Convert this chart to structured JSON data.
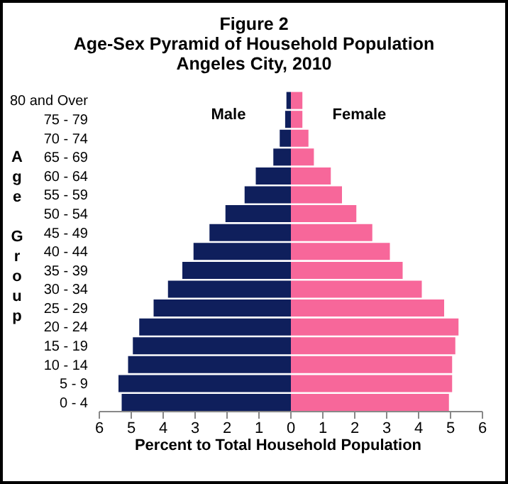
{
  "chart_data": {
    "type": "bar",
    "orientation": "horizontal",
    "stacked": true,
    "title": "Figure 2",
    "subtitle": "Age-Sex Pyramid of Household Population\nAngeles City, 2010",
    "xlabel": "Percent to Total Household Population",
    "ylabel": "Age Group",
    "categories": [
      "80 and Over",
      "75 - 79",
      "70 - 74",
      "65 - 69",
      "60 - 64",
      "55 - 59",
      "50 - 54",
      "45 - 49",
      "40 - 44",
      "35 - 39",
      "30 - 34",
      "25 - 29",
      "20 - 24",
      "15 - 19",
      "10 - 14",
      "5 - 9",
      "0 - 4"
    ],
    "series": [
      {
        "name": "Male",
        "color": "#0f1f5c",
        "values": [
          -0.14,
          -0.18,
          -0.35,
          -0.55,
          -1.1,
          -1.45,
          -2.05,
          -2.55,
          -3.05,
          -3.4,
          -3.85,
          -4.3,
          -4.75,
          -4.95,
          -5.1,
          -5.4,
          -5.3
        ]
      },
      {
        "name": "Female",
        "color": "#f7679a",
        "values": [
          0.36,
          0.36,
          0.55,
          0.72,
          1.25,
          1.6,
          2.05,
          2.55,
          3.1,
          3.5,
          4.1,
          4.8,
          5.25,
          5.15,
          5.05,
          5.05,
          4.95
        ]
      }
    ],
    "xlim": [
      -6,
      6
    ],
    "xticks": [
      {
        "value": -6,
        "label": "6"
      },
      {
        "value": -5,
        "label": "5"
      },
      {
        "value": -4,
        "label": "4"
      },
      {
        "value": -3,
        "label": "3"
      },
      {
        "value": -2,
        "label": "2"
      },
      {
        "value": -1,
        "label": "1"
      },
      0,
      1,
      2,
      3,
      4,
      5,
      6
    ]
  }
}
